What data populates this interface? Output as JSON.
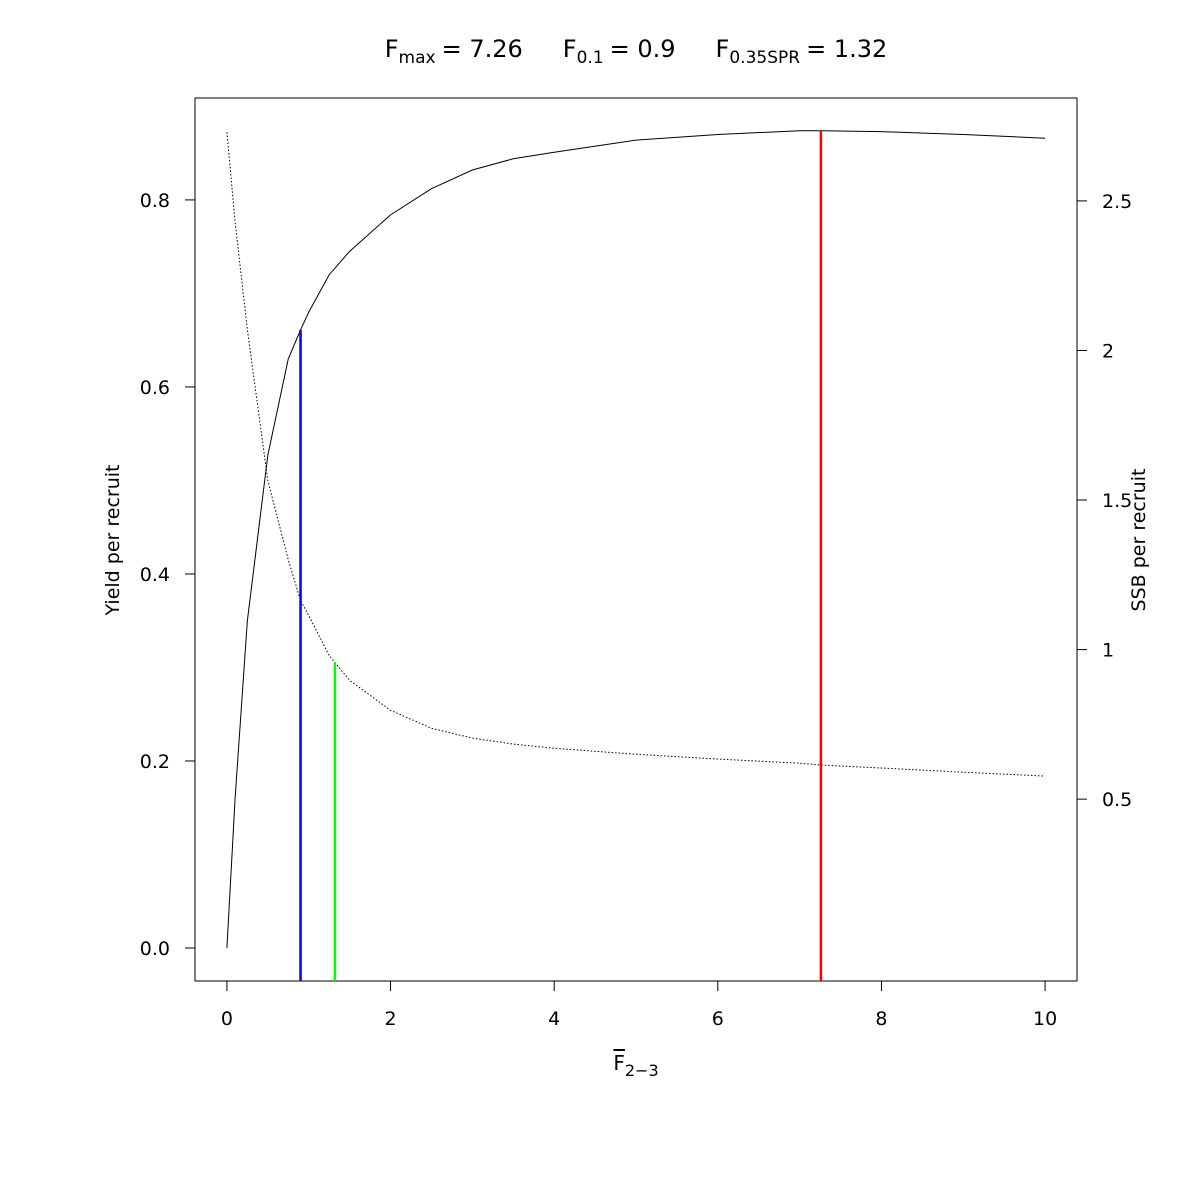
{
  "chart_data": {
    "type": "line",
    "title_parts": [
      {
        "symbol": "F",
        "subscript": "max",
        "value_label": "= 7.26",
        "x": 7.26,
        "color": "#ff0000",
        "axis": "y"
      },
      {
        "symbol": "F",
        "subscript": "0.1",
        "value_label": "= 0.9",
        "x": 0.9,
        "color": "#0000ff",
        "axis": "y"
      },
      {
        "symbol": "F",
        "subscript": "0.35SPR",
        "value_label": "= 1.32",
        "x": 1.32,
        "color": "#00ff00",
        "axis": "y2"
      }
    ],
    "xlabel": {
      "symbol": "F",
      "subscript": "2−3"
    },
    "ylabel": "Yield per recruit",
    "y2label": "SSB per recruit",
    "x": [
      0,
      0.1,
      0.25,
      0.5,
      0.75,
      0.9,
      1,
      1.25,
      1.32,
      1.5,
      2,
      2.5,
      3,
      3.5,
      4,
      5,
      6,
      7,
      7.26,
      8,
      9,
      10
    ],
    "series": [
      {
        "color": "#000000",
        "style": "solid",
        "axis": "y",
        "values": [
          0,
          0.16,
          0.35,
          0.527,
          0.63,
          0.661,
          0.68,
          0.72,
          0.727,
          0.745,
          0.784,
          0.812,
          0.832,
          0.844,
          0.851,
          0.864,
          0.87,
          0.874,
          0.874,
          0.873,
          0.87,
          0.866
        ]
      },
      {
        "color": "#000000",
        "style": "dotted",
        "axis": "y2",
        "values": [
          2.73,
          2.43,
          2.07,
          1.565,
          1.3,
          1.164,
          1.114,
          0.98,
          0.957,
          0.897,
          0.797,
          0.737,
          0.704,
          0.684,
          0.67,
          0.65,
          0.634,
          0.62,
          0.614,
          0.604,
          0.59,
          0.577
        ]
      }
    ],
    "xlim": [
      -0.39,
      10.39
    ],
    "xticks": [
      0,
      2,
      4,
      6,
      8,
      10
    ],
    "ylim": [
      -0.0353,
      0.909
    ],
    "yticks": [
      {
        "value": 0,
        "label": "0.0"
      },
      0.2,
      0.4,
      0.6,
      0.8
    ],
    "y2lim": [
      -0.108,
      2.844
    ],
    "y2ticks": [
      0.5,
      1,
      1.5,
      2,
      2.5
    ]
  }
}
